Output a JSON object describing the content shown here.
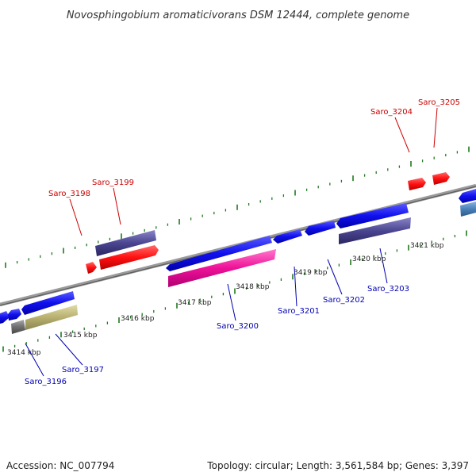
{
  "title": "Novosphingobium aromaticivorans DSM 12444, complete genome",
  "footer": {
    "accession": "Accession: NC_007794",
    "summary": "Topology: circular; Length: 3,561,584 bp; Genes: 3,397"
  },
  "colors": {
    "backbone": "#8a8a8a",
    "tick": "#1f7a1f",
    "label_top": "#cc0000",
    "label_bottom": "#0000b3",
    "scale_text": "#222222"
  },
  "scale_labels": [
    "3414 kbp",
    "3415 kbp",
    "3416 kbp",
    "3417 kbp",
    "3418 kbp",
    "3419 kbp",
    "3420 kbp",
    "3421 kbp"
  ],
  "gene_labels": {
    "top": [
      "Saro_3198",
      "Saro_3199",
      "Saro_3204",
      "Saro_3205"
    ],
    "bottom": [
      "Saro_3196",
      "Saro_3197",
      "Saro_3200",
      "Saro_3201",
      "Saro_3202",
      "Saro_3203"
    ]
  }
}
